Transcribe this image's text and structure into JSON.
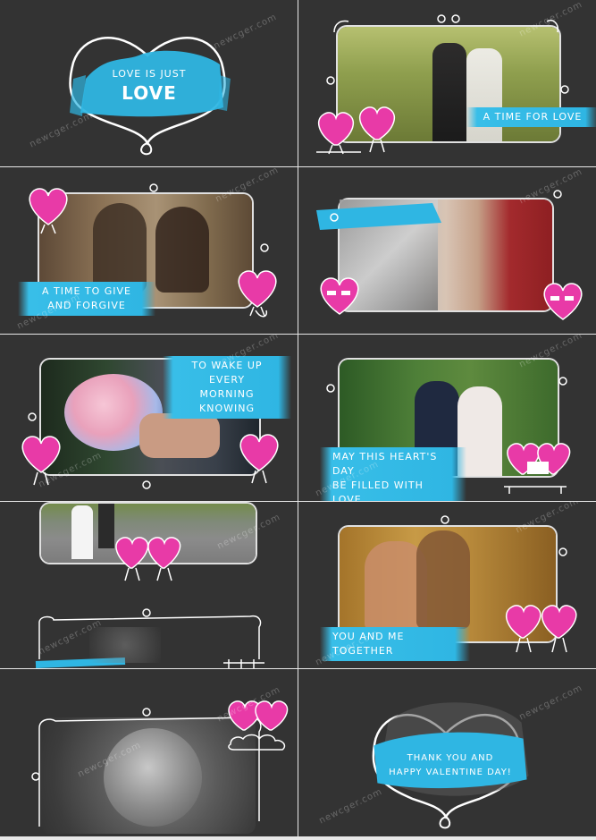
{
  "watermark": "newcger.com",
  "colors": {
    "panel_bg": "#333333",
    "accent_blue": "#38bee8",
    "heart_pink": "#e83aa7",
    "frame_white": "#ffffff"
  },
  "panels": [
    {
      "id": "p1",
      "title_small": "LOVE IS JUST",
      "title_big": "LOVE"
    },
    {
      "id": "p2",
      "caption": "A TIME FOR LOVE"
    },
    {
      "id": "p3",
      "caption_line1": "A TIME TO GIVE",
      "caption_line2": "AND FORGIVE"
    },
    {
      "id": "p4"
    },
    {
      "id": "p5",
      "caption_line1": "TO WAKE UP EVERY",
      "caption_line2": "MORNING KNOWING"
    },
    {
      "id": "p6",
      "caption_line1": "MAY THIS HEART'S DAY",
      "caption_line2": "BE FILLED WITH LOVE"
    },
    {
      "id": "p7"
    },
    {
      "id": "p8",
      "caption": "YOU AND ME TOGETHER"
    },
    {
      "id": "p9"
    },
    {
      "id": "p10",
      "title_line1": "THANK YOU AND",
      "title_line2": "HAPPY VALENTINE DAY!"
    }
  ]
}
